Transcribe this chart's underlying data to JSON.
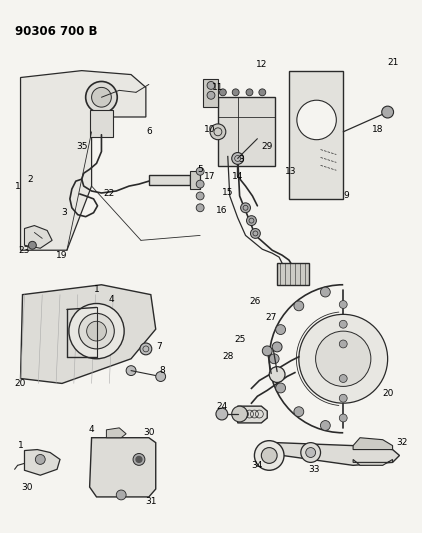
{
  "title": "90306 700 B",
  "bg_color": "#f5f4f0",
  "line_color": "#2a2a2a",
  "label_color": "#000000",
  "title_fontsize": 8.5,
  "label_fontsize": 6.5,
  "fig_width": 4.22,
  "fig_height": 5.33,
  "dpi": 100
}
